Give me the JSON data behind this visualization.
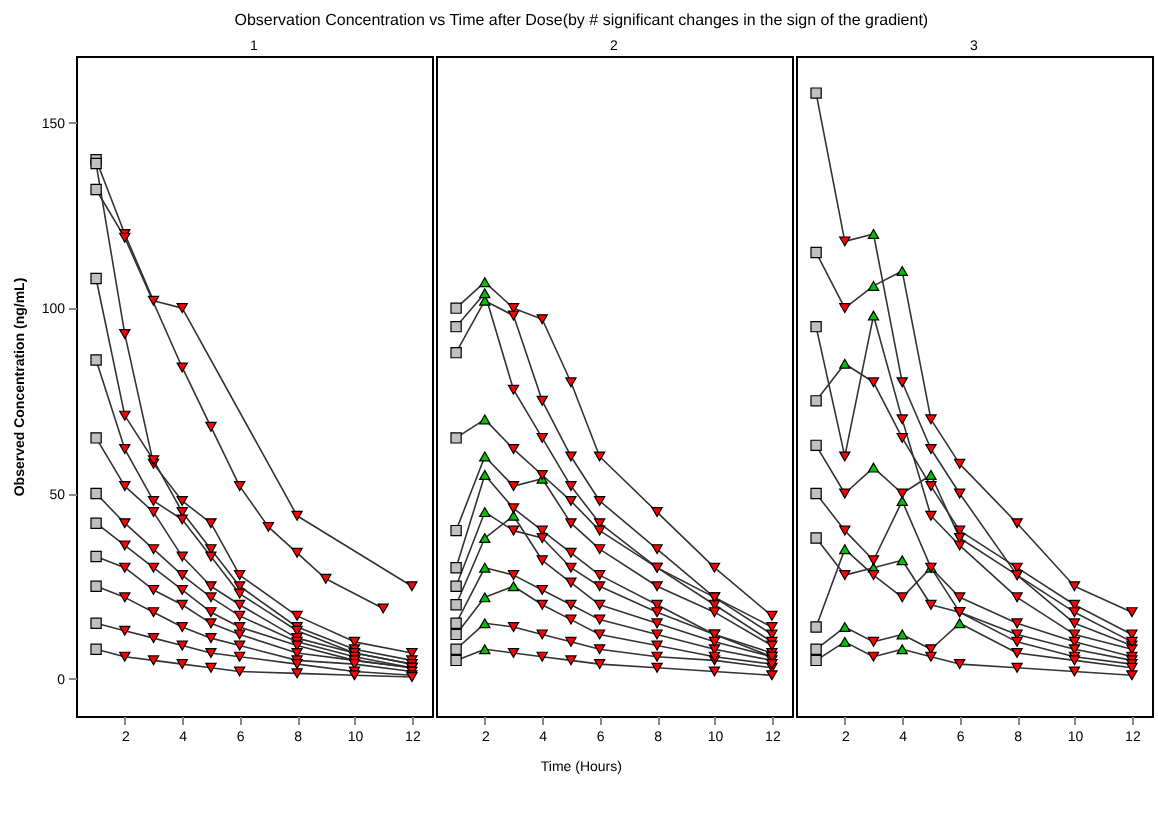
{
  "chart_data": [
    {
      "type": "line",
      "title": "1",
      "annotations": [
        "Observation Concentration vs Time after Dose(by # significant changes in the sign of the gradient)"
      ],
      "ylabel": "Observed Concentration (ng/mL)",
      "x": [
        1,
        2,
        3,
        4,
        5,
        6,
        8,
        10,
        12
      ],
      "xlim": [
        0.3,
        12.7
      ],
      "xticks": [
        2,
        4,
        6,
        8,
        10,
        12
      ],
      "ylim": [
        -10,
        168
      ],
      "yticks": [
        0,
        50,
        100,
        150
      ],
      "series": [
        {
          "type": "line",
          "color": "#333333",
          "x": [
            1,
            2,
            3,
            4,
            8,
            12
          ],
          "values": [
            140,
            120,
            102,
            100,
            44,
            25
          ]
        },
        {
          "type": "line",
          "color": "#333333",
          "x": [
            1,
            2,
            4,
            5,
            6,
            7,
            8,
            9,
            11
          ],
          "values": [
            132,
            119,
            84,
            68,
            52,
            41,
            34,
            27,
            19
          ]
        },
        {
          "type": "line",
          "color": "#333333",
          "values": [
            139,
            93,
            58,
            48,
            42,
            28,
            17,
            10,
            7
          ]
        },
        {
          "type": "line",
          "color": "#333333",
          "values": [
            108,
            71,
            59,
            45,
            35,
            25,
            14,
            8,
            5
          ]
        },
        {
          "type": "line",
          "color": "#333333",
          "values": [
            86,
            62,
            48,
            43,
            33,
            23,
            13,
            7,
            4
          ]
        },
        {
          "type": "line",
          "color": "#333333",
          "values": [
            65,
            52,
            45,
            33,
            25,
            20,
            11,
            7,
            4
          ]
        },
        {
          "type": "line",
          "color": "#333333",
          "values": [
            50,
            42,
            35,
            28,
            22,
            17,
            10,
            6,
            3
          ]
        },
        {
          "type": "line",
          "color": "#333333",
          "values": [
            42,
            36,
            30,
            24,
            18,
            14,
            9,
            5,
            3
          ]
        },
        {
          "type": "line",
          "color": "#333333",
          "values": [
            33,
            30,
            24,
            20,
            15,
            12,
            7,
            5,
            3
          ]
        },
        {
          "type": "line",
          "color": "#333333",
          "values": [
            25,
            22,
            18,
            14,
            11,
            9,
            5,
            4,
            2
          ]
        },
        {
          "type": "line",
          "color": "#333333",
          "values": [
            15,
            13,
            11,
            9,
            7,
            6,
            4,
            2,
            1
          ]
        },
        {
          "type": "line",
          "color": "#333333",
          "values": [
            8,
            6,
            5,
            4,
            3,
            2,
            1.5,
            1,
            0.5
          ]
        },
        {
          "type": "scatter",
          "marker": "square",
          "color": "#c0c0c0",
          "x": [
            1,
            1,
            1,
            1,
            1,
            1,
            1,
            1,
            1,
            1,
            1,
            1
          ],
          "values": [
            140,
            132,
            139,
            108,
            86,
            65,
            50,
            42,
            33,
            25,
            15,
            8
          ]
        },
        {
          "type": "scatter",
          "marker": "triangle-down",
          "color": "#ff0000",
          "x": [
            2,
            3,
            4,
            8,
            12,
            2,
            4,
            5,
            6,
            7,
            8,
            9,
            11,
            2,
            3,
            4,
            5,
            6,
            8,
            10,
            12,
            2,
            3,
            4,
            5,
            6,
            8,
            10,
            12,
            2,
            3,
            4,
            5,
            6,
            8,
            10,
            12,
            2,
            3,
            4,
            5,
            6,
            8,
            10,
            12,
            2,
            3,
            4,
            5,
            6,
            8,
            10,
            12,
            2,
            3,
            4,
            5,
            6,
            8,
            10,
            12,
            2,
            3,
            4,
            5,
            6,
            8,
            10,
            12,
            2,
            3,
            4,
            5,
            6,
            8,
            10,
            12,
            2,
            3,
            4,
            5,
            6,
            8,
            10,
            12,
            2,
            3,
            4,
            5,
            6,
            8,
            10,
            12
          ],
          "values": [
            120,
            102,
            100,
            44,
            25,
            119,
            84,
            68,
            52,
            41,
            34,
            27,
            19,
            93,
            58,
            48,
            42,
            28,
            17,
            10,
            7,
            71,
            59,
            45,
            35,
            25,
            14,
            8,
            5,
            62,
            48,
            43,
            33,
            23,
            13,
            7,
            4,
            52,
            45,
            33,
            25,
            20,
            11,
            7,
            4,
            42,
            35,
            28,
            22,
            17,
            10,
            6,
            3,
            36,
            30,
            24,
            18,
            14,
            9,
            5,
            3,
            30,
            24,
            20,
            15,
            12,
            7,
            5,
            3,
            22,
            18,
            14,
            11,
            9,
            5,
            4,
            2,
            13,
            11,
            9,
            7,
            6,
            4,
            2,
            1,
            6,
            5,
            4,
            3,
            2,
            1.5,
            1,
            0.5
          ]
        }
      ]
    },
    {
      "type": "line",
      "title": "2",
      "xlabel": "Time (Hours)",
      "x": [
        1,
        2,
        3,
        4,
        5,
        6,
        8,
        10,
        12
      ],
      "xlim": [
        0.3,
        12.7
      ],
      "xticks": [
        2,
        4,
        6,
        8,
        10,
        12
      ],
      "ylim": [
        -10,
        168
      ],
      "yticks": [
        0,
        50,
        100,
        150
      ],
      "tick_labels": "x",
      "series": [
        {
          "type": "line",
          "color": "#333333",
          "values": [
            100,
            107,
            100,
            97,
            80,
            60,
            45,
            30,
            17
          ]
        },
        {
          "type": "line",
          "color": "#333333",
          "values": [
            88,
            102,
            98,
            75,
            60,
            48,
            35,
            22,
            12
          ]
        },
        {
          "type": "line",
          "color": "#333333",
          "values": [
            95,
            104,
            78,
            65,
            52,
            42,
            30,
            20,
            10
          ]
        },
        {
          "type": "line",
          "color": "#333333",
          "values": [
            65,
            70,
            62,
            55,
            48,
            40,
            30,
            22,
            14
          ]
        },
        {
          "type": "line",
          "color": "#333333",
          "values": [
            40,
            60,
            52,
            54,
            42,
            35,
            25,
            18,
            9
          ]
        },
        {
          "type": "line",
          "color": "#333333",
          "values": [
            30,
            55,
            46,
            40,
            34,
            28,
            20,
            12,
            7
          ]
        },
        {
          "type": "line",
          "color": "#333333",
          "values": [
            25,
            45,
            40,
            38,
            30,
            25,
            18,
            12,
            6
          ]
        },
        {
          "type": "line",
          "color": "#333333",
          "values": [
            20,
            38,
            44,
            32,
            26,
            20,
            15,
            10,
            6
          ]
        },
        {
          "type": "line",
          "color": "#333333",
          "values": [
            15,
            30,
            28,
            24,
            20,
            16,
            12,
            8,
            5
          ]
        },
        {
          "type": "line",
          "color": "#333333",
          "values": [
            12,
            22,
            25,
            20,
            16,
            12,
            9,
            6,
            4
          ]
        },
        {
          "type": "line",
          "color": "#333333",
          "values": [
            8,
            15,
            14,
            12,
            10,
            8,
            6,
            5,
            3
          ]
        },
        {
          "type": "line",
          "color": "#333333",
          "values": [
            5,
            8,
            7,
            6,
            5,
            4,
            3,
            2,
            1
          ]
        },
        {
          "type": "scatter",
          "marker": "square",
          "color": "#c0c0c0",
          "x": [
            1,
            1,
            1,
            1,
            1,
            1,
            1,
            1,
            1,
            1,
            1,
            1
          ],
          "values": [
            100,
            88,
            95,
            65,
            40,
            30,
            25,
            20,
            15,
            12,
            8,
            5
          ]
        },
        {
          "type": "scatter",
          "marker": "triangle",
          "color": "#00c000",
          "x": [
            2,
            2,
            2,
            2,
            2,
            2,
            2,
            2,
            2,
            2,
            2,
            2,
            3,
            3,
            4
          ],
          "values": [
            107,
            102,
            104,
            70,
            60,
            55,
            45,
            38,
            30,
            22,
            15,
            8,
            44,
            25,
            54
          ]
        },
        {
          "type": "scatter",
          "marker": "triangle-down",
          "color": "#ff0000",
          "x": [
            3,
            4,
            5,
            6,
            8,
            10,
            12,
            3,
            4,
            5,
            6,
            8,
            10,
            12,
            3,
            4,
            5,
            6,
            8,
            10,
            12,
            3,
            4,
            5,
            6,
            8,
            10,
            12,
            3,
            4,
            5,
            6,
            8,
            10,
            12,
            3,
            4,
            5,
            6,
            8,
            10,
            12,
            3,
            4,
            5,
            6,
            8,
            10,
            12,
            3,
            4,
            5,
            6,
            8,
            10,
            12,
            3,
            4,
            5,
            6,
            8,
            10,
            12,
            3,
            5,
            6,
            8,
            10,
            12,
            4,
            5,
            6,
            8,
            10,
            12,
            4,
            5,
            6,
            8,
            10,
            12
          ],
          "values": [
            100,
            97,
            80,
            60,
            45,
            30,
            17,
            98,
            75,
            60,
            48,
            35,
            22,
            12,
            78,
            65,
            52,
            42,
            30,
            20,
            10,
            62,
            55,
            48,
            40,
            30,
            22,
            14,
            46,
            40,
            34,
            28,
            20,
            12,
            7,
            40,
            38,
            30,
            25,
            18,
            12,
            6,
            28,
            24,
            20,
            16,
            12,
            8,
            5,
            14,
            12,
            10,
            8,
            6,
            5,
            3,
            7,
            6,
            5,
            4,
            3,
            2,
            1,
            52,
            42,
            35,
            25,
            18,
            9,
            32,
            26,
            20,
            15,
            10,
            6,
            20,
            16,
            12,
            9,
            6,
            4
          ]
        }
      ]
    },
    {
      "type": "line",
      "title": "3",
      "x": [
        1,
        2,
        3,
        4,
        5,
        6,
        8,
        10,
        12
      ],
      "xlim": [
        0.3,
        12.7
      ],
      "xticks": [
        2,
        4,
        6,
        8,
        10,
        12
      ],
      "ylim": [
        -10,
        168
      ],
      "yticks": [
        0,
        50,
        100,
        150
      ],
      "tick_labels": "x",
      "series": [
        {
          "type": "line",
          "color": "#333333",
          "values": [
            158,
            118,
            120,
            80,
            62,
            50,
            28,
            15,
            9
          ]
        },
        {
          "type": "line",
          "color": "#333333",
          "values": [
            115,
            100,
            106,
            110,
            70,
            58,
            42,
            25,
            18
          ]
        },
        {
          "type": "line",
          "color": "#333333",
          "values": [
            95,
            60,
            98,
            70,
            44,
            36,
            22,
            12,
            8
          ]
        },
        {
          "type": "line",
          "color": "#333333",
          "values": [
            75,
            85,
            80,
            65,
            52,
            40,
            30,
            20,
            12
          ]
        },
        {
          "type": "line",
          "color": "#333333",
          "values": [
            63,
            50,
            57,
            50,
            55,
            38,
            28,
            18,
            10
          ]
        },
        {
          "type": "line",
          "color": "#333333",
          "values": [
            50,
            40,
            32,
            48,
            30,
            22,
            15,
            10,
            6
          ]
        },
        {
          "type": "line",
          "color": "#333333",
          "values": [
            38,
            28,
            30,
            32,
            20,
            18,
            12,
            8,
            5
          ]
        },
        {
          "type": "line",
          "color": "#333333",
          "values": [
            14,
            35,
            28,
            22,
            30,
            18,
            10,
            6,
            4
          ]
        },
        {
          "type": "line",
          "color": "#333333",
          "values": [
            8,
            14,
            10,
            12,
            8,
            15,
            7,
            5,
            3
          ]
        },
        {
          "type": "line",
          "color": "#333333",
          "values": [
            5,
            10,
            6,
            8,
            6,
            4,
            3,
            2,
            1
          ]
        },
        {
          "type": "scatter",
          "marker": "square",
          "color": "#c0c0c0",
          "x": [
            1,
            1,
            1,
            1,
            1,
            1,
            1,
            1,
            1,
            1
          ],
          "values": [
            158,
            115,
            95,
            75,
            63,
            50,
            38,
            14,
            8,
            5
          ]
        },
        {
          "type": "scatter",
          "marker": "triangle",
          "color": "#00c000",
          "x": [
            3,
            3,
            4,
            3,
            2,
            3,
            5,
            4,
            3,
            4,
            2,
            5,
            2,
            4,
            6,
            2,
            4
          ],
          "values": [
            120,
            106,
            110,
            98,
            85,
            57,
            55,
            48,
            30,
            32,
            35,
            30,
            14,
            12,
            15,
            10,
            8
          ]
        },
        {
          "type": "scatter",
          "marker": "triangle-down",
          "color": "#ff0000",
          "x": [
            2,
            4,
            5,
            6,
            8,
            10,
            12,
            2,
            5,
            6,
            8,
            10,
            12,
            2,
            4,
            5,
            6,
            8,
            10,
            12,
            3,
            4,
            5,
            6,
            8,
            10,
            12,
            2,
            4,
            6,
            8,
            10,
            12,
            2,
            3,
            5,
            6,
            8,
            10,
            12,
            2,
            5,
            6,
            8,
            10,
            12,
            3,
            4,
            6,
            8,
            10,
            12,
            3,
            5,
            8,
            10,
            12,
            3,
            5,
            6,
            8,
            10,
            12
          ],
          "values": [
            118,
            80,
            62,
            50,
            28,
            15,
            9,
            100,
            70,
            58,
            42,
            25,
            18,
            60,
            70,
            44,
            36,
            22,
            12,
            8,
            80,
            65,
            52,
            40,
            30,
            20,
            12,
            50,
            50,
            38,
            28,
            18,
            10,
            40,
            32,
            30,
            22,
            15,
            10,
            6,
            28,
            20,
            18,
            12,
            8,
            5,
            28,
            22,
            18,
            10,
            6,
            4,
            10,
            8,
            7,
            5,
            3,
            6,
            6,
            4,
            3,
            2,
            1
          ]
        }
      ]
    }
  ]
}
